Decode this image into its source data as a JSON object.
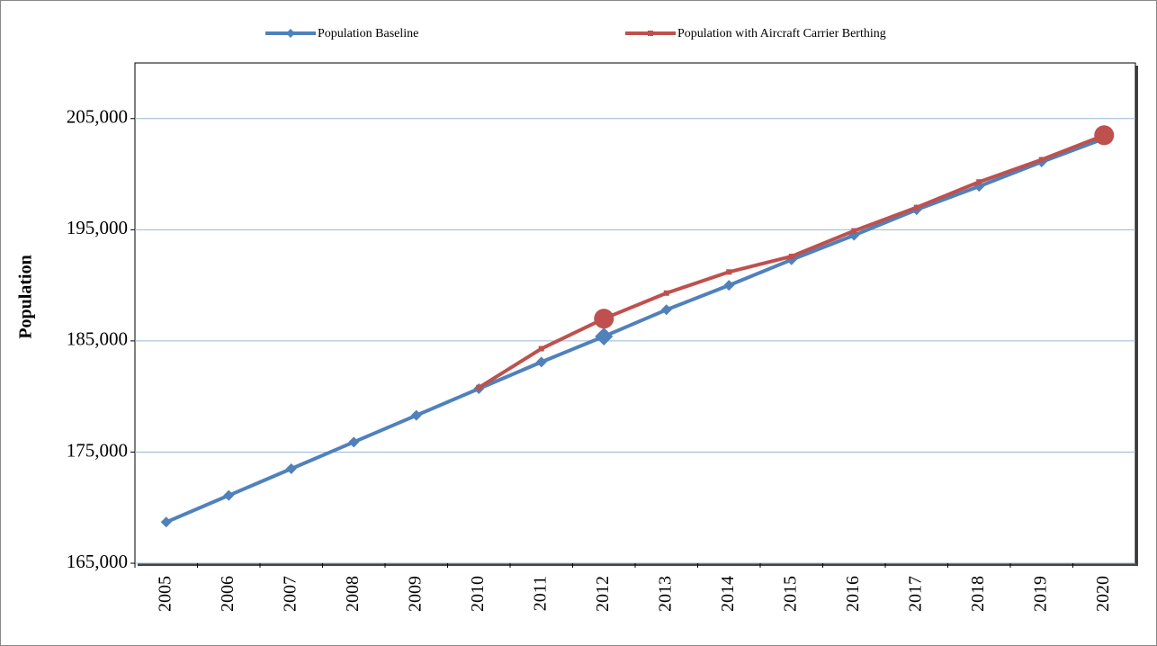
{
  "chart_data": {
    "type": "line",
    "y_label": "Population",
    "categories": [
      "2005",
      "2006",
      "2007",
      "2008",
      "2009",
      "2010",
      "2011",
      "2012",
      "2013",
      "2014",
      "2015",
      "2016",
      "2017",
      "2018",
      "2019",
      "2020"
    ],
    "series": [
      {
        "name": "Population Baseline",
        "color": "#4f81bd",
        "marker": "diamond",
        "highlight": [
          7
        ],
        "values": [
          168700,
          171100,
          173500,
          175900,
          178300,
          180700,
          183100,
          185400,
          187800,
          190000,
          192300,
          194500,
          196800,
          198900,
          201100,
          203200
        ]
      },
      {
        "name": "Population with Aircraft Carrier Berthing",
        "color": "#c0504d",
        "marker": "square",
        "highlight": [
          7,
          15
        ],
        "values": [
          null,
          null,
          null,
          null,
          null,
          180800,
          184300,
          187000,
          189300,
          191200,
          192600,
          194900,
          197000,
          199300,
          201300,
          203500
        ]
      }
    ],
    "ylim": [
      165000,
      210000
    ],
    "yticks": [
      {
        "value": 165000,
        "label": "165,000"
      },
      {
        "value": 175000,
        "label": "175,000"
      },
      {
        "value": 185000,
        "label": "185,000"
      },
      {
        "value": 195000,
        "label": "195,000"
      },
      {
        "value": 205000,
        "label": "205,000"
      }
    ],
    "grid": true,
    "legend": "top"
  }
}
